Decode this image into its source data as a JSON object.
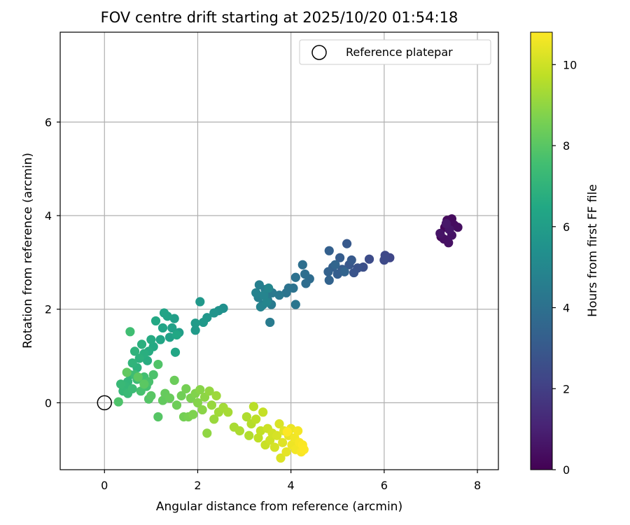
{
  "chart_data": {
    "type": "scatter",
    "title": "FOV centre drift starting at 2025/10/20 01:54:18",
    "xlabel": "Angular distance from reference (arcmin)",
    "ylabel": "Rotation from reference (arcmin)",
    "xlim": [
      -0.95,
      8.45
    ],
    "ylim": [
      -1.43,
      7.92
    ],
    "xticks": [
      0,
      2,
      4,
      6,
      8
    ],
    "yticks": [
      0,
      2,
      4,
      6
    ],
    "grid": true,
    "legend": {
      "label": "Reference platepar",
      "position": "top-right"
    },
    "reference_point": {
      "x": 0,
      "y": 0
    },
    "colorbar": {
      "label": "Hours from first FF file",
      "range": [
        0,
        10.8
      ],
      "ticks": [
        0,
        2,
        4,
        6,
        8,
        10
      ],
      "colormap": "viridis"
    },
    "series": [
      {
        "color_by": "hours",
        "points": [
          {
            "x": 7.22,
            "y": 3.55,
            "h": 0.1
          },
          {
            "x": 7.3,
            "y": 3.75,
            "h": 0.2
          },
          {
            "x": 7.35,
            "y": 3.9,
            "h": 0.25
          },
          {
            "x": 7.45,
            "y": 3.93,
            "h": 0.3
          },
          {
            "x": 7.5,
            "y": 3.8,
            "h": 0.35
          },
          {
            "x": 7.58,
            "y": 3.75,
            "h": 0.4
          },
          {
            "x": 7.28,
            "y": 3.5,
            "h": 0.45
          },
          {
            "x": 7.38,
            "y": 3.42,
            "h": 0.5
          },
          {
            "x": 7.45,
            "y": 3.58,
            "h": 0.55
          },
          {
            "x": 7.2,
            "y": 3.62,
            "h": 0.6
          },
          {
            "x": 7.4,
            "y": 3.7,
            "h": 0.65
          },
          {
            "x": 7.33,
            "y": 3.83,
            "h": 0.7
          },
          {
            "x": 6.12,
            "y": 3.1,
            "h": 2.3
          },
          {
            "x": 6.02,
            "y": 3.15,
            "h": 2.35
          },
          {
            "x": 6.0,
            "y": 3.05,
            "h": 2.4
          },
          {
            "x": 5.68,
            "y": 3.07,
            "h": 2.5
          },
          {
            "x": 5.55,
            "y": 2.9,
            "h": 2.6
          },
          {
            "x": 5.43,
            "y": 2.88,
            "h": 2.7
          },
          {
            "x": 5.35,
            "y": 2.78,
            "h": 2.8
          },
          {
            "x": 5.25,
            "y": 2.95,
            "h": 2.9
          },
          {
            "x": 5.2,
            "y": 3.4,
            "h": 3.0
          },
          {
            "x": 5.3,
            "y": 3.05,
            "h": 3.05
          },
          {
            "x": 5.1,
            "y": 2.85,
            "h": 3.1
          },
          {
            "x": 5.05,
            "y": 3.1,
            "h": 3.15
          },
          {
            "x": 5.0,
            "y": 2.75,
            "h": 3.2
          },
          {
            "x": 4.9,
            "y": 2.9,
            "h": 3.25
          },
          {
            "x": 4.82,
            "y": 3.25,
            "h": 3.3
          },
          {
            "x": 4.8,
            "y": 2.8,
            "h": 3.35
          },
          {
            "x": 4.82,
            "y": 2.62,
            "h": 3.4
          },
          {
            "x": 5.15,
            "y": 2.8,
            "h": 3.45
          },
          {
            "x": 4.95,
            "y": 2.95,
            "h": 3.5
          },
          {
            "x": 4.4,
            "y": 2.65,
            "h": 3.8
          },
          {
            "x": 4.32,
            "y": 2.55,
            "h": 3.85
          },
          {
            "x": 4.3,
            "y": 2.75,
            "h": 3.9
          },
          {
            "x": 4.25,
            "y": 2.95,
            "h": 3.95
          },
          {
            "x": 4.1,
            "y": 2.68,
            "h": 4.0
          },
          {
            "x": 4.05,
            "y": 2.45,
            "h": 4.05
          },
          {
            "x": 3.95,
            "y": 2.45,
            "h": 4.1
          },
          {
            "x": 3.9,
            "y": 2.35,
            "h": 4.15
          },
          {
            "x": 4.1,
            "y": 2.1,
            "h": 4.2
          },
          {
            "x": 3.75,
            "y": 2.3,
            "h": 4.3
          },
          {
            "x": 3.6,
            "y": 2.35,
            "h": 4.35
          },
          {
            "x": 3.58,
            "y": 2.1,
            "h": 4.4
          },
          {
            "x": 3.55,
            "y": 1.72,
            "h": 4.45
          },
          {
            "x": 3.5,
            "y": 2.2,
            "h": 4.5
          },
          {
            "x": 3.45,
            "y": 2.42,
            "h": 4.55
          },
          {
            "x": 3.4,
            "y": 2.1,
            "h": 4.6
          },
          {
            "x": 3.32,
            "y": 2.52,
            "h": 4.65
          },
          {
            "x": 3.3,
            "y": 2.25,
            "h": 4.7
          },
          {
            "x": 3.25,
            "y": 2.35,
            "h": 4.75
          },
          {
            "x": 3.35,
            "y": 2.05,
            "h": 4.8
          },
          {
            "x": 3.42,
            "y": 2.3,
            "h": 4.85
          },
          {
            "x": 3.48,
            "y": 2.15,
            "h": 4.9
          },
          {
            "x": 3.52,
            "y": 2.45,
            "h": 4.95
          },
          {
            "x": 2.55,
            "y": 2.02,
            "h": 5.4
          },
          {
            "x": 2.45,
            "y": 1.97,
            "h": 5.5
          },
          {
            "x": 2.35,
            "y": 1.92,
            "h": 5.6
          },
          {
            "x": 2.2,
            "y": 1.82,
            "h": 5.7
          },
          {
            "x": 2.05,
            "y": 2.16,
            "h": 5.75
          },
          {
            "x": 2.12,
            "y": 1.72,
            "h": 5.8
          },
          {
            "x": 1.95,
            "y": 1.55,
            "h": 5.85
          },
          {
            "x": 1.95,
            "y": 1.7,
            "h": 5.9
          },
          {
            "x": 1.6,
            "y": 1.5,
            "h": 6.0
          },
          {
            "x": 1.5,
            "y": 1.8,
            "h": 6.05
          },
          {
            "x": 1.45,
            "y": 1.6,
            "h": 6.1
          },
          {
            "x": 1.4,
            "y": 1.4,
            "h": 6.15
          },
          {
            "x": 1.35,
            "y": 1.85,
            "h": 6.2
          },
          {
            "x": 1.28,
            "y": 1.92,
            "h": 6.25
          },
          {
            "x": 1.25,
            "y": 1.6,
            "h": 6.3
          },
          {
            "x": 1.2,
            "y": 1.35,
            "h": 6.35
          },
          {
            "x": 1.52,
            "y": 1.08,
            "h": 6.4
          },
          {
            "x": 1.55,
            "y": 1.45,
            "h": 6.45
          },
          {
            "x": 1.1,
            "y": 1.75,
            "h": 6.5
          },
          {
            "x": 1.05,
            "y": 1.2,
            "h": 6.55
          },
          {
            "x": 1.0,
            "y": 1.35,
            "h": 6.6
          },
          {
            "x": 0.95,
            "y": 1.1,
            "h": 6.65
          },
          {
            "x": 0.92,
            "y": 0.9,
            "h": 6.7
          },
          {
            "x": 0.85,
            "y": 1.05,
            "h": 6.75
          },
          {
            "x": 0.8,
            "y": 1.25,
            "h": 6.8
          },
          {
            "x": 0.75,
            "y": 0.95,
            "h": 6.85
          },
          {
            "x": 0.7,
            "y": 0.75,
            "h": 6.9
          },
          {
            "x": 0.65,
            "y": 1.1,
            "h": 6.95
          },
          {
            "x": 0.6,
            "y": 0.85,
            "h": 7.0
          },
          {
            "x": 0.55,
            "y": 0.6,
            "h": 7.05
          },
          {
            "x": 0.5,
            "y": 0.45,
            "h": 7.1
          },
          {
            "x": 0.45,
            "y": 0.35,
            "h": 7.15
          },
          {
            "x": 0.4,
            "y": 0.25,
            "h": 7.2
          },
          {
            "x": 0.35,
            "y": 0.4,
            "h": 7.25
          },
          {
            "x": 0.5,
            "y": 0.2,
            "h": 7.3
          },
          {
            "x": 0.6,
            "y": 0.3,
            "h": 7.35
          },
          {
            "x": 0.7,
            "y": 0.5,
            "h": 7.4
          },
          {
            "x": 0.65,
            "y": 0.6,
            "h": 7.45
          },
          {
            "x": 0.55,
            "y": 1.52,
            "h": 7.5
          },
          {
            "x": 0.85,
            "y": 0.55,
            "h": 7.55
          },
          {
            "x": 0.9,
            "y": 0.35,
            "h": 7.6
          },
          {
            "x": 0.78,
            "y": 0.25,
            "h": 7.65
          },
          {
            "x": 0.95,
            "y": 0.45,
            "h": 7.7
          },
          {
            "x": 1.05,
            "y": 0.6,
            "h": 7.75
          },
          {
            "x": 0.3,
            "y": 0.02,
            "h": 7.8
          },
          {
            "x": 1.15,
            "y": 0.82,
            "h": 7.85
          },
          {
            "x": 0.95,
            "y": 0.08,
            "h": 7.9
          },
          {
            "x": 1.15,
            "y": -0.3,
            "h": 7.95
          },
          {
            "x": 1.0,
            "y": 0.15,
            "h": 8.0
          },
          {
            "x": 0.85,
            "y": 0.4,
            "h": 8.05
          },
          {
            "x": 0.72,
            "y": 0.55,
            "h": 8.1
          },
          {
            "x": 0.48,
            "y": 0.65,
            "h": 8.15
          },
          {
            "x": 1.25,
            "y": 0.05,
            "h": 8.2
          },
          {
            "x": 1.3,
            "y": 0.2,
            "h": 8.25
          },
          {
            "x": 1.4,
            "y": 0.1,
            "h": 8.3
          },
          {
            "x": 1.5,
            "y": 0.48,
            "h": 8.35
          },
          {
            "x": 1.55,
            "y": -0.05,
            "h": 8.4
          },
          {
            "x": 1.65,
            "y": 0.15,
            "h": 8.45
          },
          {
            "x": 1.7,
            "y": -0.3,
            "h": 8.5
          },
          {
            "x": 1.75,
            "y": 0.3,
            "h": 8.55
          },
          {
            "x": 1.8,
            "y": -0.3,
            "h": 8.6
          },
          {
            "x": 1.85,
            "y": 0.1,
            "h": 8.65
          },
          {
            "x": 1.9,
            "y": -0.25,
            "h": 8.7
          },
          {
            "x": 1.95,
            "y": 0.2,
            "h": 8.75
          },
          {
            "x": 2.0,
            "y": 0.0,
            "h": 8.8
          },
          {
            "x": 2.05,
            "y": 0.28,
            "h": 8.85
          },
          {
            "x": 2.1,
            "y": -0.15,
            "h": 8.9
          },
          {
            "x": 2.15,
            "y": 0.12,
            "h": 8.95
          },
          {
            "x": 2.2,
            "y": -0.65,
            "h": 9.0
          },
          {
            "x": 2.25,
            "y": 0.25,
            "h": 9.05
          },
          {
            "x": 2.3,
            "y": -0.05,
            "h": 9.1
          },
          {
            "x": 2.35,
            "y": -0.35,
            "h": 9.15
          },
          {
            "x": 2.4,
            "y": 0.15,
            "h": 9.2
          },
          {
            "x": 2.45,
            "y": -0.2,
            "h": 9.25
          },
          {
            "x": 2.55,
            "y": -0.1,
            "h": 9.3
          },
          {
            "x": 2.65,
            "y": -0.2,
            "h": 9.35
          },
          {
            "x": 2.78,
            "y": -0.52,
            "h": 9.4
          },
          {
            "x": 2.9,
            "y": -0.6,
            "h": 9.45
          },
          {
            "x": 3.05,
            "y": -0.3,
            "h": 9.5
          },
          {
            "x": 3.1,
            "y": -0.7,
            "h": 9.55
          },
          {
            "x": 3.15,
            "y": -0.45,
            "h": 9.6
          },
          {
            "x": 3.2,
            "y": -0.08,
            "h": 9.65
          },
          {
            "x": 3.25,
            "y": -0.35,
            "h": 9.7
          },
          {
            "x": 3.3,
            "y": -0.75,
            "h": 9.75
          },
          {
            "x": 3.35,
            "y": -0.6,
            "h": 9.8
          },
          {
            "x": 3.4,
            "y": -0.2,
            "h": 9.85
          },
          {
            "x": 3.45,
            "y": -0.9,
            "h": 9.9
          },
          {
            "x": 3.5,
            "y": -0.55,
            "h": 9.95
          },
          {
            "x": 3.55,
            "y": -0.8,
            "h": 10.0
          },
          {
            "x": 3.6,
            "y": -0.65,
            "h": 10.05
          },
          {
            "x": 3.65,
            "y": -0.95,
            "h": 10.1
          },
          {
            "x": 3.7,
            "y": -0.7,
            "h": 10.15
          },
          {
            "x": 3.75,
            "y": -0.45,
            "h": 10.2
          },
          {
            "x": 3.78,
            "y": -1.18,
            "h": 10.25
          },
          {
            "x": 3.82,
            "y": -0.85,
            "h": 10.3
          },
          {
            "x": 3.85,
            "y": -0.6,
            "h": 10.35
          },
          {
            "x": 3.9,
            "y": -1.05,
            "h": 10.4
          },
          {
            "x": 3.95,
            "y": -0.7,
            "h": 10.45
          },
          {
            "x": 4.0,
            "y": -0.55,
            "h": 10.5
          },
          {
            "x": 4.02,
            "y": -0.9,
            "h": 10.55
          },
          {
            "x": 4.08,
            "y": -0.75,
            "h": 10.6
          },
          {
            "x": 4.1,
            "y": -1.0,
            "h": 10.62
          },
          {
            "x": 4.15,
            "y": -0.6,
            "h": 10.65
          },
          {
            "x": 4.18,
            "y": -0.85,
            "h": 10.7
          },
          {
            "x": 4.22,
            "y": -1.05,
            "h": 10.72
          },
          {
            "x": 4.25,
            "y": -0.9,
            "h": 10.75
          },
          {
            "x": 4.28,
            "y": -1.0,
            "h": 10.78
          },
          {
            "x": 3.92,
            "y": -0.62,
            "h": 10.8
          }
        ]
      }
    ]
  }
}
